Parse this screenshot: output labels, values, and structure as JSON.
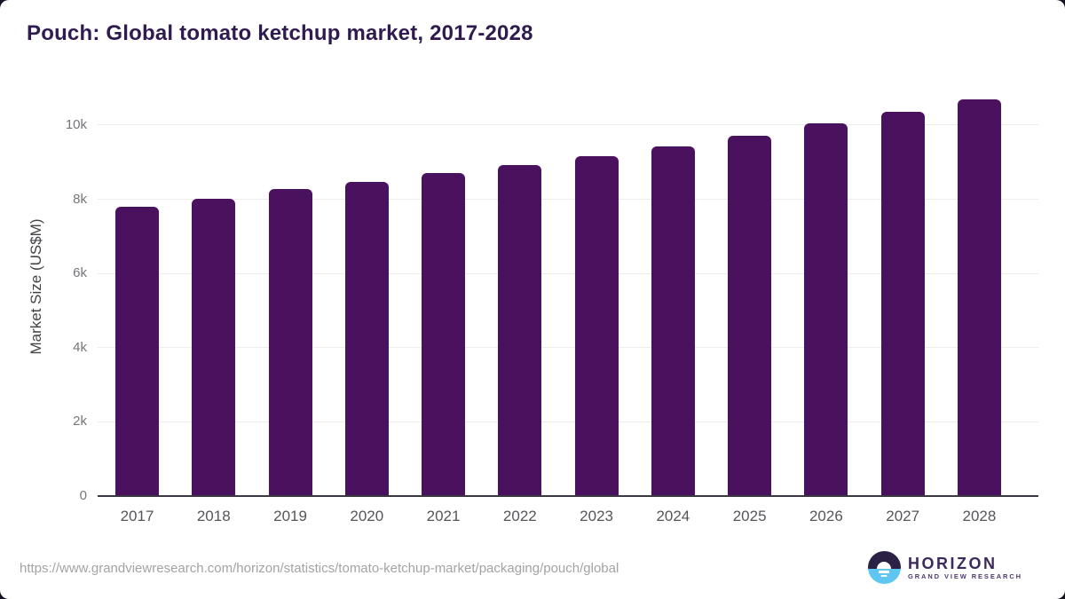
{
  "chart_data": {
    "type": "bar",
    "title": "Pouch: Global tomato ketchup market, 2017-2028",
    "categories": [
      "2017",
      "2018",
      "2019",
      "2020",
      "2021",
      "2022",
      "2023",
      "2024",
      "2025",
      "2026",
      "2027",
      "2028"
    ],
    "values": [
      7800,
      8020,
      8270,
      8460,
      8710,
      8930,
      9170,
      9430,
      9720,
      10040,
      10350,
      10700
    ],
    "xlabel": "",
    "ylabel": "Market Size (US$M)",
    "ylim": [
      0,
      11170
    ],
    "yticks": [
      {
        "value": 0,
        "label": "0"
      },
      {
        "value": 2000,
        "label": "2k"
      },
      {
        "value": 4000,
        "label": "4k"
      },
      {
        "value": 6000,
        "label": "6k"
      },
      {
        "value": 8000,
        "label": "8k"
      },
      {
        "value": 10000,
        "label": "10k"
      }
    ],
    "grid": true,
    "legend_position": "none",
    "bar_color": "#4a115e"
  },
  "footer": {
    "source_url": "https://www.grandviewresearch.com/horizon/statistics/tomato-ketchup-market/packaging/pouch/global",
    "logo": {
      "title": "HORIZON",
      "subtitle": "GRAND VIEW RESEARCH",
      "icon": "horizon-sun-circle-icon"
    }
  },
  "colors": {
    "bar": "#4a115e",
    "title_text": "#2f1b4f",
    "gridline": "#ededed",
    "axis_line": "#3a3741",
    "y_tick_text": "#76767a",
    "x_tick_text": "#55565a",
    "url_text": "#a3a3a3",
    "logo_purple": "#3b2a5c",
    "logo_circle_dark": "#2b2145",
    "logo_circle_blue": "#5ec6f0",
    "background": "#ffffff"
  }
}
